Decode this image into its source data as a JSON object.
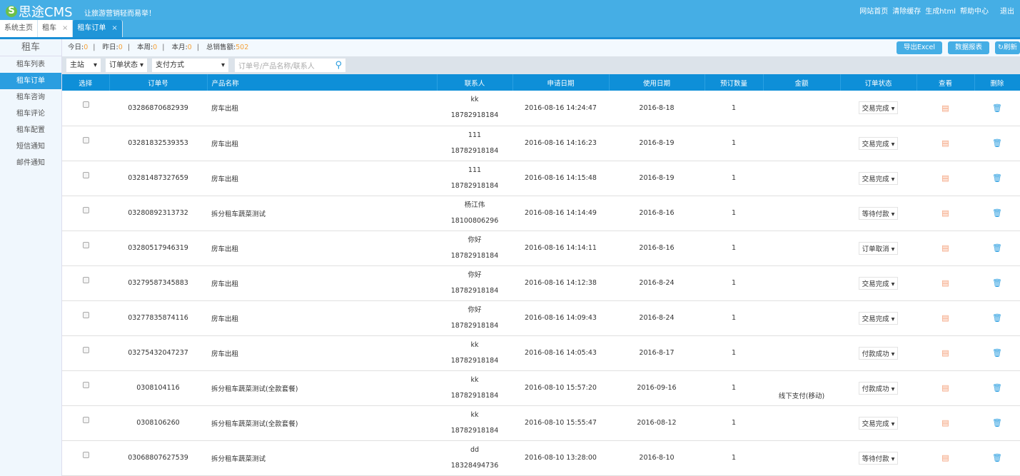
{
  "header": {
    "logo": "思途CMS",
    "slogan": "让旅游营销轻而易举！",
    "links": [
      "网站首页",
      "清除缓存",
      "生成html",
      "帮助中心",
      "退出"
    ]
  },
  "tabs": [
    {
      "label": "系统主页",
      "closable": false
    },
    {
      "label": "租车",
      "closable": true
    },
    {
      "label": "租车订单",
      "closable": true,
      "active": true
    }
  ],
  "sidebar": {
    "title": "租车",
    "items": [
      "租车列表",
      "租车订单",
      "租车咨询",
      "租车评论",
      "租车配置",
      "短信通知",
      "邮件通知"
    ],
    "active": 1
  },
  "stats": {
    "today_label": "今日:",
    "today": "0",
    "yesterday_label": "昨日:",
    "yesterday": "0",
    "week_label": "本周:",
    "week": "0",
    "month_label": "本月:",
    "month": "0",
    "total_label": "总销售额:",
    "total": "502"
  },
  "buttons": {
    "export": "导出Excel",
    "report": "数据报表",
    "refresh": "刷新"
  },
  "filters": {
    "site": "主站",
    "status": "订单状态",
    "payment": "支付方式",
    "search_placeholder": "订单号/产品名称/联系人"
  },
  "table": {
    "columns": [
      "选择",
      "订单号",
      "产品名称",
      "联系人",
      "申请日期",
      "使用日期",
      "预订数量",
      "金额",
      "订单状态",
      "查看",
      "删除"
    ],
    "rows": [
      {
        "order": "03286870682939",
        "product": "房车出租",
        "name": "kk",
        "phone": "18782918184",
        "applied": "2016-08-16 14:24:47",
        "use": "2016-8-18",
        "qty": "1",
        "amount": "",
        "status": "交易完成"
      },
      {
        "order": "03281832539353",
        "product": "房车出租",
        "name": "111",
        "phone": "18782918184",
        "applied": "2016-08-16 14:16:23",
        "use": "2016-8-19",
        "qty": "1",
        "amount": "",
        "status": "交易完成"
      },
      {
        "order": "03281487327659",
        "product": "房车出租",
        "name": "111",
        "phone": "18782918184",
        "applied": "2016-08-16 14:15:48",
        "use": "2016-8-19",
        "qty": "1",
        "amount": "",
        "status": "交易完成"
      },
      {
        "order": "03280892313732",
        "product": "拆分租车蔬菜测试",
        "name": "杨江伟",
        "phone": "18100806296",
        "applied": "2016-08-16 14:14:49",
        "use": "2016-8-16",
        "qty": "1",
        "amount": "",
        "status": "等待付款"
      },
      {
        "order": "03280517946319",
        "product": "房车出租",
        "name": "你好",
        "phone": "18782918184",
        "applied": "2016-08-16 14:14:11",
        "use": "2016-8-16",
        "qty": "1",
        "amount": "",
        "status": "订单取消"
      },
      {
        "order": "03279587345883",
        "product": "房车出租",
        "name": "你好",
        "phone": "18782918184",
        "applied": "2016-08-16 14:12:38",
        "use": "2016-8-24",
        "qty": "1",
        "amount": "",
        "status": "交易完成"
      },
      {
        "order": "03277835874116",
        "product": "房车出租",
        "name": "你好",
        "phone": "18782918184",
        "applied": "2016-08-16 14:09:43",
        "use": "2016-8-24",
        "qty": "1",
        "amount": "",
        "status": "交易完成"
      },
      {
        "order": "03275432047237",
        "product": "房车出租",
        "name": "kk",
        "phone": "18782918184",
        "applied": "2016-08-16 14:05:43",
        "use": "2016-8-17",
        "qty": "1",
        "amount": "",
        "status": "付款成功"
      },
      {
        "order": "0308104116",
        "product": "拆分租车蔬菜测试(全款套餐)",
        "name": "kk",
        "phone": "18782918184",
        "applied": "2016-08-10 15:57:20",
        "use": "2016-09-16",
        "qty": "1",
        "amount": "线下支付(移动)",
        "status": "付款成功"
      },
      {
        "order": "0308106260",
        "product": "拆分租车蔬菜测试(全款套餐)",
        "name": "kk",
        "phone": "18782918184",
        "applied": "2016-08-10 15:55:47",
        "use": "2016-08-12",
        "qty": "1",
        "amount": "",
        "status": "交易完成"
      },
      {
        "order": "03068807627539",
        "product": "拆分租车蔬菜测试",
        "name": "dd",
        "phone": "18328494736",
        "applied": "2016-08-10 13:28:00",
        "use": "2016-8-10",
        "qty": "1",
        "amount": "",
        "status": "等待付款"
      }
    ]
  }
}
